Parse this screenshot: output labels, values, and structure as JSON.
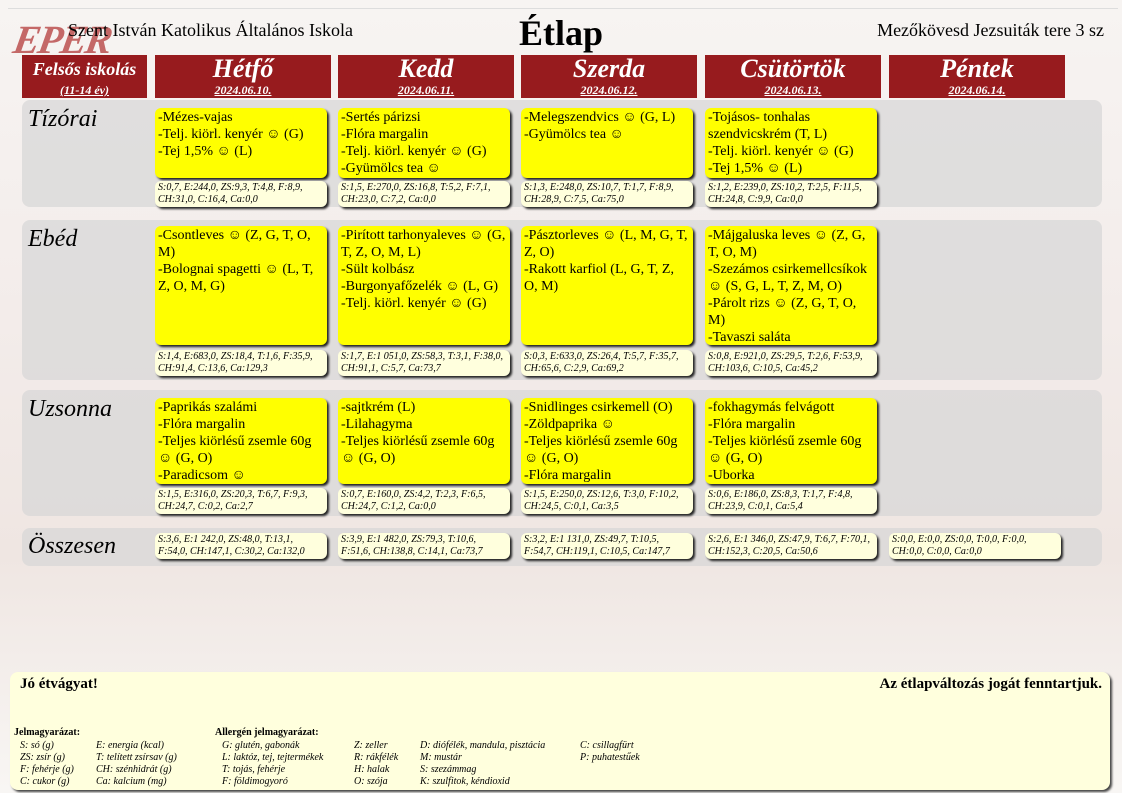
{
  "header": {
    "logo": "EPER",
    "school": "Szent István Katolikus Általános Iskola",
    "title": "Étlap",
    "address": "Mezőkövesd Jezsuiták tere 3 sz"
  },
  "group": {
    "label": "Felsős iskolás",
    "age": "(11-14 év)"
  },
  "days": [
    {
      "name": "Hétfő",
      "date": "2024.06.10."
    },
    {
      "name": "Kedd",
      "date": "2024.06.11."
    },
    {
      "name": "Szerda",
      "date": "2024.06.12."
    },
    {
      "name": "Csütörtök",
      "date": "2024.06.13."
    },
    {
      "name": "Péntek",
      "date": "2024.06.14."
    }
  ],
  "sections": [
    {
      "label": "Tízórai",
      "menus": [
        [
          "-Mézes-vajas",
          "-Telj. kiörl. kenyér ☺ (G)",
          "-Tej 1,5% ☺ (L)"
        ],
        [
          "-Sertés párizsi",
          "-Flóra margalin",
          "-Telj. kiörl. kenyér ☺ (G)",
          "-Gyümölcs tea ☺"
        ],
        [
          "-Melegszendvics ☺ (G, L)",
          "-Gyümölcs tea ☺"
        ],
        [
          "-Tojásos- tonhalas szendvicskrém (T, L)",
          "-Telj. kiörl. kenyér ☺ (G)",
          "-Tej 1,5% ☺ (L)"
        ]
      ],
      "nutrition": [
        "S:0,7, E:244,0, ZS:9,3, T:4,8, F:8,9, CH:31,0, C:16,4, Ca:0,0",
        "S:1,5, E:270,0, ZS:16,8, T:5,2, F:7,1, CH:23,0, C:7,2, Ca:0,0",
        "S:1,3, E:248,0, ZS:10,7, T:1,7, F:8,9, CH:28,9, C:7,5, Ca:75,0",
        "S:1,2, E:239,0, ZS:10,2, T:2,5, F:11,5, CH:24,8, C:9,9, Ca:0,0"
      ]
    },
    {
      "label": "Ebéd",
      "menus": [
        [
          "-Csontleves ☺ (Z, G, T, O, M)",
          "-Bolognai spagetti ☺ (L, T, Z, O, M, G)"
        ],
        [
          "-Pirított tarhonyaleves ☺ (G, T, Z, O, M, L)",
          "-Sült kolbász",
          "-Burgonyafőzelék ☺ (L, G)",
          "-Telj. kiörl. kenyér ☺ (G)"
        ],
        [
          "-Pásztorleves ☺ (L, M, G, T, Z, O)",
          "-Rakott karfiol (L, G, T, Z, O, M)"
        ],
        [
          "-Májgaluska leves ☺ (Z, G, T, O, M)",
          "-Szezámos csirkemellcsíkok ☺ (S, G, L, T, Z, M, O)",
          "-Párolt rizs ☺ (Z, G, T, O, M)",
          "-Tavaszi saláta"
        ]
      ],
      "nutrition": [
        "S:1,4, E:683,0, ZS:18,4, T:1,6, F:35,9, CH:91,4, C:13,6, Ca:129,3",
        "S:1,7, E:1 051,0, ZS:58,3, T:3,1, F:38,0, CH:91,1, C:5,7, Ca:73,7",
        "S:0,3, E:633,0, ZS:26,4, T:5,7, F:35,7, CH:65,6, C:2,9, Ca:69,2",
        "S:0,8, E:921,0, ZS:29,5, T:2,6, F:53,9, CH:103,6, C:10,5, Ca:45,2"
      ]
    },
    {
      "label": "Uzsonna",
      "menus": [
        [
          "-Paprikás szalámi",
          "-Flóra margalin",
          "-Teljes kiörlésű zsemle 60g ☺ (G, O)",
          "-Paradicsom ☺"
        ],
        [
          "-sajtkrém (L)",
          "-Lilahagyma",
          "-Teljes kiörlésű zsemle 60g ☺ (G, O)"
        ],
        [
          "-Snidlinges csirkemell (O)",
          "-Zöldpaprika ☺",
          "-Teljes kiörlésű zsemle 60g ☺ (G, O)",
          "-Flóra margalin"
        ],
        [
          "-fokhagymás felvágott",
          "-Flóra margalin",
          "-Teljes kiörlésű zsemle 60g ☺ (G, O)",
          "-Uborka"
        ]
      ],
      "nutrition": [
        "S:1,5, E:316,0, ZS:20,3, T:6,7, F:9,3, CH:24,7, C:0,2, Ca:2,7",
        "S:0,7, E:160,0, ZS:4,2, T:2,3, F:6,5, CH:24,7, C:1,2, Ca:0,0",
        "S:1,5, E:250,0, ZS:12,6, T:3,0, F:10,2, CH:24,5, C:0,1, Ca:3,5",
        "S:0,6, E:186,0, ZS:8,3, T:1,7, F:4,8, CH:23,9, C:0,1, Ca:5,4"
      ]
    }
  ],
  "totals": {
    "label": "Összesen",
    "nutrition": [
      "S:3,6, E:1 242,0, ZS:48,0, T:13,1, F:54,0, CH:147,1, C:30,2, Ca:132,0",
      "S:3,9, E:1 482,0, ZS:79,3, T:10,6, F:51,6, CH:138,8, C:14,1, Ca:73,7",
      "S:3,2, E:1 131,0, ZS:49,7, T:10,5, F:54,7, CH:119,1, C:10,5, Ca:147,7",
      "S:2,6, E:1 346,0, ZS:47,9, T:6,7, F:70,1, CH:152,3, C:20,5, Ca:50,6",
      "S:0,0, E:0,0, ZS:0,0, T:0,0, F:0,0, CH:0,0, C:0,0, Ca:0,0"
    ]
  },
  "footer": {
    "greeting": "Jó étvágyat!",
    "notice": "Az étlapváltozás jogát fenntartjuk.",
    "legend_title": "Jelmagyarázat:",
    "legend": [
      [
        "S: só (g)",
        "ZS: zsír (g)",
        "F: fehérje (g)",
        "C: cukor (g)"
      ],
      [
        "E: energia (kcal)",
        "T: telített zsírsav (g)",
        "CH: szénhidrát (g)",
        "Ca: kalcium (mg)"
      ]
    ],
    "allergen_title": "Allergén jelmagyarázat:",
    "allergens": [
      [
        "G: glutén, gabonák",
        "L: laktóz, tej, tejtermékek",
        "T: tojás, fehérje",
        "F: földimogyoró"
      ],
      [
        "Z: zeller",
        "R: rákfélék",
        "H: halak",
        "O: szója"
      ],
      [
        "D: diófélék, mandula, pisztácia",
        "M: mustár",
        "S: szezámmag",
        "K: szulfitok, kéndioxid"
      ],
      [
        "C: csillagfürt",
        "P: puhatestűek"
      ]
    ]
  }
}
